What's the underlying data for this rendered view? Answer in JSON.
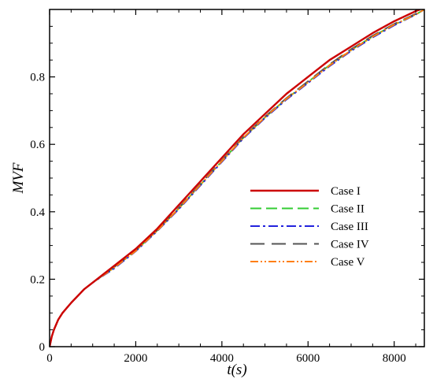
{
  "chart_data": {
    "type": "line",
    "xlabel": "t(s)",
    "ylabel": "MVF",
    "xlim": [
      0,
      8700
    ],
    "ylim": [
      0,
      1.0
    ],
    "x_ticks": [
      0,
      2000,
      4000,
      6000,
      8000
    ],
    "y_ticks": [
      0,
      0.2,
      0.4,
      0.6,
      0.8
    ],
    "x_tick_labels": [
      "0",
      "2000",
      "4000",
      "6000",
      "8000"
    ],
    "y_tick_labels": [
      "0",
      "0.2",
      "0.4",
      "0.6",
      "0.8"
    ],
    "grid": false,
    "legend_position": "center-right",
    "series": [
      {
        "name": "Case I",
        "color": "#cc0000",
        "dash": "solid",
        "x": [
          0,
          50,
          100,
          200,
          300,
          500,
          800,
          1000,
          1500,
          2000,
          2500,
          3000,
          3500,
          4000,
          4500,
          5000,
          5500,
          6000,
          6500,
          7000,
          7500,
          8000,
          8500,
          8600
        ],
        "y": [
          0,
          0.03,
          0.05,
          0.08,
          0.1,
          0.13,
          0.17,
          0.19,
          0.24,
          0.29,
          0.35,
          0.42,
          0.49,
          0.56,
          0.63,
          0.69,
          0.75,
          0.8,
          0.85,
          0.89,
          0.93,
          0.965,
          0.995,
          1.0
        ]
      },
      {
        "name": "Case II",
        "color": "#33cc33",
        "dash": "long-dash",
        "x": [
          0,
          50,
          100,
          200,
          300,
          500,
          800,
          1000,
          1500,
          2000,
          2500,
          3000,
          3500,
          4000,
          4500,
          5000,
          5500,
          6000,
          6500,
          7000,
          7500,
          8000,
          8500,
          8700
        ],
        "y": [
          0,
          0.03,
          0.05,
          0.08,
          0.1,
          0.13,
          0.17,
          0.19,
          0.235,
          0.285,
          0.345,
          0.41,
          0.48,
          0.55,
          0.62,
          0.68,
          0.735,
          0.785,
          0.835,
          0.88,
          0.92,
          0.955,
          0.985,
          1.0
        ]
      },
      {
        "name": "Case III",
        "color": "#2222dd",
        "dash": "dash-dot",
        "x": [
          0,
          50,
          100,
          200,
          300,
          500,
          800,
          1000,
          1500,
          2000,
          2500,
          3000,
          3500,
          4000,
          4500,
          5000,
          5500,
          6000,
          6500,
          7000,
          7500,
          8000,
          8500,
          8700
        ],
        "y": [
          0,
          0.03,
          0.05,
          0.08,
          0.1,
          0.13,
          0.17,
          0.19,
          0.232,
          0.283,
          0.343,
          0.408,
          0.478,
          0.548,
          0.618,
          0.678,
          0.733,
          0.782,
          0.832,
          0.877,
          0.917,
          0.953,
          0.985,
          1.0
        ]
      },
      {
        "name": "Case IV",
        "color": "#555555",
        "dash": "long-dash-gap",
        "x": [
          0,
          50,
          100,
          200,
          300,
          500,
          800,
          1000,
          1500,
          2000,
          2500,
          3000,
          3500,
          4000,
          4500,
          5000,
          5500,
          6000,
          6500,
          7000,
          7500,
          8000,
          8500,
          8700
        ],
        "y": [
          0,
          0.03,
          0.05,
          0.08,
          0.1,
          0.13,
          0.17,
          0.19,
          0.236,
          0.286,
          0.346,
          0.412,
          0.482,
          0.552,
          0.622,
          0.682,
          0.737,
          0.787,
          0.837,
          0.882,
          0.922,
          0.957,
          0.987,
          1.0
        ]
      },
      {
        "name": "Case V",
        "color": "#ff7f0e",
        "dash": "dash-dot-dot",
        "x": [
          0,
          50,
          100,
          200,
          300,
          500,
          800,
          1000,
          1500,
          2000,
          2500,
          3000,
          3500,
          4000,
          4500,
          5000,
          5500,
          6000,
          6500,
          7000,
          7500,
          8000,
          8500,
          8700
        ],
        "y": [
          0,
          0.03,
          0.05,
          0.08,
          0.1,
          0.13,
          0.17,
          0.19,
          0.234,
          0.284,
          0.344,
          0.41,
          0.48,
          0.55,
          0.62,
          0.68,
          0.735,
          0.784,
          0.834,
          0.879,
          0.919,
          0.955,
          0.985,
          1.0
        ]
      }
    ]
  }
}
